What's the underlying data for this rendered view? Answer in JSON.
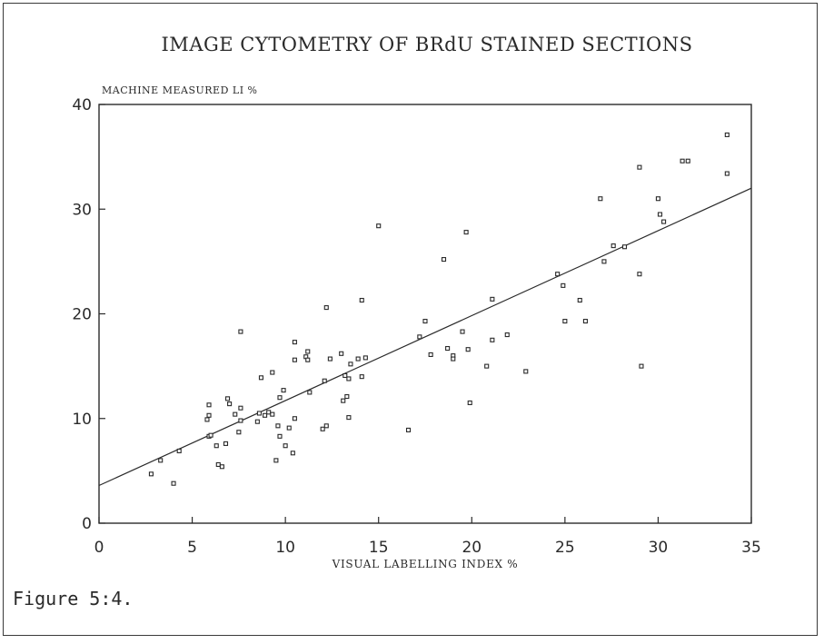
{
  "figure": {
    "caption": "Figure 5:4."
  },
  "chart_data": {
    "type": "scatter",
    "title": "IMAGE CYTOMETRY OF BRdU STAINED SECTIONS",
    "xlabel": "VISUAL LABELLING INDEX %",
    "ylabel": "MACHINE MEASURED LI %",
    "xlim": [
      0,
      35
    ],
    "ylim": [
      0,
      40
    ],
    "x_ticks": [
      0,
      5,
      10,
      15,
      20,
      25,
      30,
      35
    ],
    "y_ticks": [
      0,
      10,
      20,
      30,
      40
    ],
    "grid": false,
    "fit_line": {
      "x": [
        0,
        35
      ],
      "y": [
        3.6,
        32.0
      ]
    },
    "colors": {
      "ink": "#2a2a2a"
    },
    "points": [
      [
        2.8,
        4.7
      ],
      [
        3.3,
        6.0
      ],
      [
        4.0,
        3.8
      ],
      [
        4.3,
        6.9
      ],
      [
        5.8,
        9.9
      ],
      [
        5.9,
        11.3
      ],
      [
        5.9,
        10.3
      ],
      [
        5.9,
        8.3
      ],
      [
        6.0,
        8.4
      ],
      [
        6.3,
        7.4
      ],
      [
        6.4,
        5.6
      ],
      [
        6.6,
        5.4
      ],
      [
        6.8,
        7.6
      ],
      [
        6.9,
        11.9
      ],
      [
        7.0,
        11.4
      ],
      [
        7.3,
        10.4
      ],
      [
        7.5,
        8.7
      ],
      [
        7.6,
        9.8
      ],
      [
        7.6,
        11.0
      ],
      [
        7.6,
        18.3
      ],
      [
        8.5,
        9.7
      ],
      [
        8.6,
        10.5
      ],
      [
        8.7,
        13.9
      ],
      [
        8.9,
        10.3
      ],
      [
        9.1,
        10.6
      ],
      [
        9.3,
        10.4
      ],
      [
        9.3,
        14.4
      ],
      [
        9.5,
        6.0
      ],
      [
        9.6,
        9.3
      ],
      [
        9.7,
        8.3
      ],
      [
        9.7,
        12.0
      ],
      [
        9.9,
        12.7
      ],
      [
        10.0,
        7.4
      ],
      [
        10.2,
        9.1
      ],
      [
        10.4,
        6.7
      ],
      [
        10.5,
        10.0
      ],
      [
        10.5,
        15.6
      ],
      [
        10.5,
        17.3
      ],
      [
        11.1,
        15.9
      ],
      [
        11.2,
        16.4
      ],
      [
        11.2,
        15.6
      ],
      [
        11.3,
        12.5
      ],
      [
        12.0,
        9.0
      ],
      [
        12.1,
        13.6
      ],
      [
        12.2,
        20.6
      ],
      [
        12.2,
        9.3
      ],
      [
        12.4,
        15.7
      ],
      [
        13.0,
        16.2
      ],
      [
        13.1,
        11.7
      ],
      [
        13.2,
        14.1
      ],
      [
        13.3,
        12.1
      ],
      [
        13.4,
        10.1
      ],
      [
        13.4,
        13.8
      ],
      [
        13.5,
        15.2
      ],
      [
        13.9,
        15.7
      ],
      [
        14.1,
        14.0
      ],
      [
        14.1,
        21.3
      ],
      [
        14.3,
        15.8
      ],
      [
        15.0,
        28.4
      ],
      [
        16.6,
        8.9
      ],
      [
        17.2,
        17.8
      ],
      [
        17.5,
        19.3
      ],
      [
        17.8,
        16.1
      ],
      [
        18.5,
        25.2
      ],
      [
        18.7,
        16.7
      ],
      [
        19.0,
        16.0
      ],
      [
        19.0,
        15.7
      ],
      [
        19.5,
        18.3
      ],
      [
        19.7,
        27.8
      ],
      [
        19.8,
        16.6
      ],
      [
        19.9,
        11.5
      ],
      [
        20.8,
        15.0
      ],
      [
        21.1,
        21.4
      ],
      [
        21.1,
        17.5
      ],
      [
        21.9,
        18.0
      ],
      [
        22.9,
        14.5
      ],
      [
        24.6,
        23.8
      ],
      [
        24.9,
        22.7
      ],
      [
        25.0,
        19.3
      ],
      [
        25.8,
        21.3
      ],
      [
        26.1,
        19.3
      ],
      [
        26.9,
        31.0
      ],
      [
        27.1,
        25.0
      ],
      [
        27.6,
        26.5
      ],
      [
        28.2,
        26.4
      ],
      [
        29.0,
        34.0
      ],
      [
        29.0,
        23.8
      ],
      [
        29.1,
        15.0
      ],
      [
        30.0,
        31.0
      ],
      [
        30.1,
        29.5
      ],
      [
        30.3,
        28.8
      ],
      [
        31.3,
        34.6
      ],
      [
        31.6,
        34.6
      ],
      [
        33.7,
        37.1
      ],
      [
        33.7,
        33.4
      ]
    ]
  }
}
